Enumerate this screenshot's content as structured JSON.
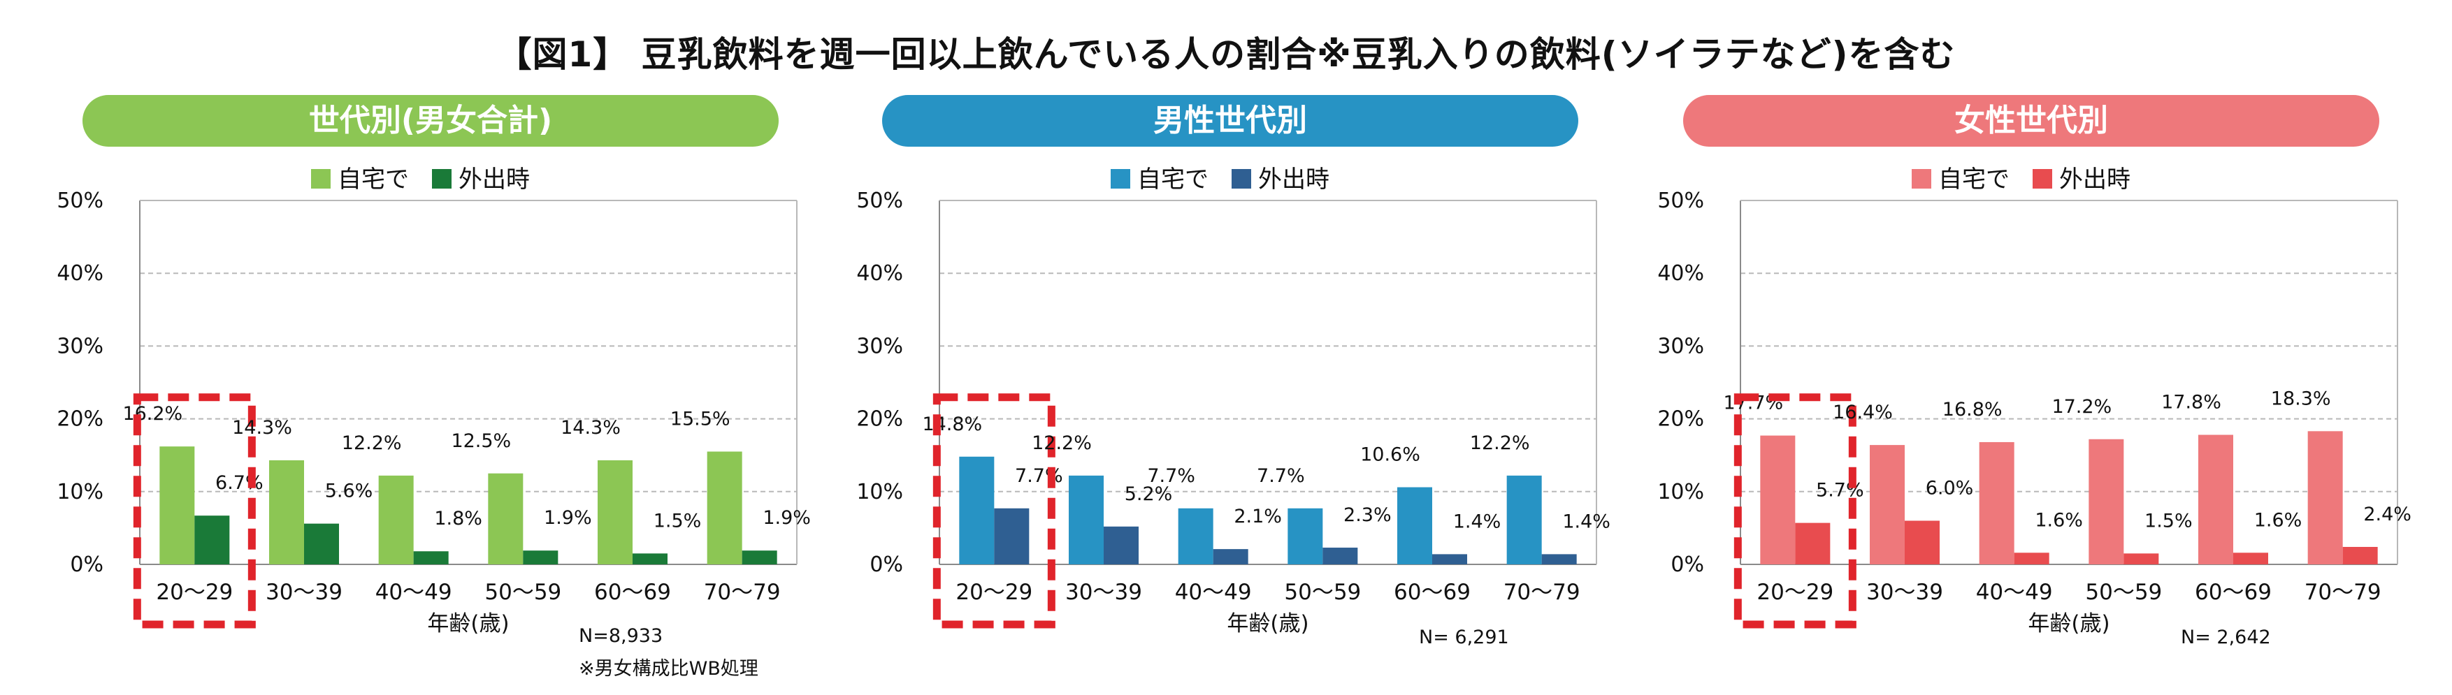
{
  "title": "【図1】 豆乳飲料を週一回以上飲んでいる人の割合※豆乳入りの飲料(ソイラテなど)を含む",
  "colors": {
    "highlight_box": "#e0242b",
    "grid": "#b8b8b8",
    "axis": "#8a8a8a"
  },
  "chart_data": [
    {
      "type": "bar",
      "title": "世代別(男女合計)",
      "title_color": "#8cc654",
      "categories": [
        "20～29",
        "30～39",
        "40～49",
        "50～59",
        "60～69",
        "70～79"
      ],
      "series": [
        {
          "name": "自宅で",
          "color": "#8cc654",
          "values": [
            16.2,
            14.3,
            12.2,
            12.5,
            14.3,
            15.5
          ]
        },
        {
          "name": "外出時",
          "color": "#1a7a38",
          "values": [
            6.7,
            5.6,
            1.8,
            1.9,
            1.5,
            1.9
          ]
        }
      ],
      "data_labels": [
        [
          "16.2%",
          "14.3%",
          "12.2%",
          "12.5%",
          "14.3%",
          "15.5%"
        ],
        [
          "6.7%",
          "5.6%",
          "1.8%",
          "1.9%",
          "1.5%",
          "1.9%"
        ]
      ],
      "yticks": [
        "0%",
        "10%",
        "20%",
        "30%",
        "40%",
        "50%"
      ],
      "ylim": [
        0,
        50
      ],
      "xlabel": "年齢(歳)",
      "grid": true,
      "legend": "top-center",
      "highlight_category": "20～29",
      "notes": [
        "N=8,933",
        "※男女構成比WB処理"
      ]
    },
    {
      "type": "bar",
      "title": "男性世代別",
      "title_color": "#2793c4",
      "categories": [
        "20～29",
        "30～39",
        "40～49",
        "50～59",
        "60～69",
        "70～79"
      ],
      "series": [
        {
          "name": "自宅で",
          "color": "#2793c4",
          "values": [
            14.8,
            12.2,
            7.7,
            7.7,
            10.6,
            12.2
          ]
        },
        {
          "name": "外出時",
          "color": "#2f5f92",
          "values": [
            7.7,
            5.2,
            2.1,
            2.3,
            1.4,
            1.4
          ]
        }
      ],
      "data_labels": [
        [
          "14.8%",
          "12.2%",
          "7.7%",
          "7.7%",
          "10.6%",
          "12.2%"
        ],
        [
          "7.7%",
          "5.2%",
          "2.1%",
          "2.3%",
          "1.4%",
          "1.4%"
        ]
      ],
      "yticks": [
        "0%",
        "10%",
        "20%",
        "30%",
        "40%",
        "50%"
      ],
      "ylim": [
        0,
        50
      ],
      "xlabel": "年齢(歳)",
      "grid": true,
      "legend": "top-center",
      "highlight_category": "20～29",
      "notes": [
        "N= 6,291"
      ]
    },
    {
      "type": "bar",
      "title": "女性世代別",
      "title_color": "#ee787b",
      "categories": [
        "20～29",
        "30～39",
        "40～49",
        "50～59",
        "60～69",
        "70～79"
      ],
      "series": [
        {
          "name": "自宅で",
          "color": "#ee787b",
          "values": [
            17.7,
            16.4,
            16.8,
            17.2,
            17.8,
            18.3
          ]
        },
        {
          "name": "外出時",
          "color": "#e84c4f",
          "values": [
            5.7,
            6.0,
            1.6,
            1.5,
            1.6,
            2.4
          ]
        }
      ],
      "data_labels": [
        [
          "17.7%",
          "16.4%",
          "16.8%",
          "17.2%",
          "17.8%",
          "18.3%"
        ],
        [
          "5.7%",
          "6.0%",
          "1.6%",
          "1.5%",
          "1.6%",
          "2.4%"
        ]
      ],
      "yticks": [
        "0%",
        "10%",
        "20%",
        "30%",
        "40%",
        "50%"
      ],
      "ylim": [
        0,
        50
      ],
      "xlabel": "年齢(歳)",
      "grid": true,
      "legend": "top-center",
      "highlight_category": "20～29",
      "notes": [
        "N= 2,642"
      ]
    }
  ]
}
